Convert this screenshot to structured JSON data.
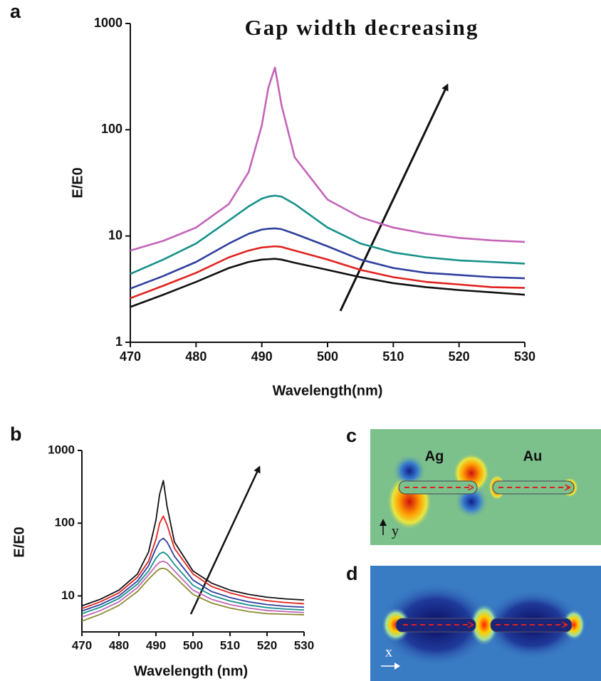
{
  "chart_data": [
    {
      "type": "line",
      "label": "a",
      "title": "Gap width decreasing",
      "xlabel": "Wavelength(nm)",
      "ylabel": "E/E0",
      "log_y": true,
      "x": [
        470,
        475,
        480,
        485,
        488,
        490,
        491,
        492,
        493,
        495,
        500,
        505,
        510,
        515,
        520,
        525,
        530
      ],
      "xlim": [
        470,
        530
      ],
      "xticks": [
        470,
        480,
        490,
        500,
        510,
        520,
        530
      ],
      "ylim": [
        1,
        1000
      ],
      "yticks": [
        1,
        10,
        100,
        1000
      ],
      "series": [
        {
          "color": "#c464b9",
          "values": [
            7.3,
            9,
            12,
            20,
            40,
            110,
            250,
            385,
            170,
            55,
            22,
            15,
            12,
            10.5,
            9.6,
            9.1,
            8.8
          ]
        },
        {
          "color": "#15918a",
          "values": [
            4.4,
            6,
            8.5,
            14,
            19,
            22.5,
            23.5,
            24,
            23.5,
            20,
            12,
            8.5,
            7,
            6.3,
            5.9,
            5.7,
            5.5
          ]
        },
        {
          "color": "#2f3f9e",
          "values": [
            3.2,
            4.2,
            5.7,
            8.5,
            10.5,
            11.5,
            11.7,
            11.8,
            11.6,
            10.5,
            8,
            6,
            5,
            4.5,
            4.3,
            4.1,
            4.0
          ]
        },
        {
          "color": "#e0231f",
          "values": [
            2.6,
            3.4,
            4.5,
            6.3,
            7.3,
            7.8,
            7.9,
            8,
            7.9,
            7.3,
            6,
            4.8,
            4.1,
            3.7,
            3.5,
            3.3,
            3.25
          ]
        },
        {
          "color": "#111111",
          "values": [
            2.15,
            2.8,
            3.7,
            5,
            5.7,
            6,
            6.05,
            6.1,
            6,
            5.6,
            4.8,
            4.1,
            3.6,
            3.3,
            3.1,
            2.95,
            2.8
          ]
        }
      ]
    },
    {
      "type": "line",
      "label": "b",
      "xlabel": "Wavelength (nm)",
      "ylabel": "E/E0",
      "log_y": true,
      "x": [
        470,
        475,
        480,
        485,
        488,
        490,
        491,
        492,
        493,
        495,
        500,
        505,
        510,
        515,
        520,
        525,
        530
      ],
      "xlim": [
        470,
        530
      ],
      "xticks": [
        470,
        480,
        490,
        500,
        510,
        520,
        530
      ],
      "ylim": [
        3.2,
        1000
      ],
      "yticks": [
        10,
        100,
        1000
      ],
      "series": [
        {
          "color": "#111111",
          "values": [
            7.3,
            9,
            12,
            20,
            40,
            110,
            250,
            385,
            170,
            55,
            22,
            15,
            12,
            10.5,
            9.6,
            9.1,
            8.8
          ]
        },
        {
          "color": "#e0231f",
          "values": [
            6.7,
            8.3,
            11,
            18,
            30,
            60,
            100,
            125,
            95,
            45,
            20,
            13.5,
            11,
            9.5,
            8.6,
            8.1,
            7.8
          ]
        },
        {
          "color": "#2f3f9e",
          "values": [
            6.2,
            7.6,
            10,
            16,
            26,
            45,
            57,
            62,
            55,
            35,
            16.5,
            11.5,
            9.5,
            8.3,
            7.6,
            7.2,
            7.0
          ]
        },
        {
          "color": "#15918a",
          "values": [
            5.7,
            7,
            9.2,
            14.5,
            22,
            33,
            38,
            40,
            37,
            27,
            14,
            10.2,
            8.5,
            7.5,
            6.9,
            6.6,
            6.4
          ]
        },
        {
          "color": "#c464b9",
          "values": [
            5.1,
            6.3,
            8.3,
            13,
            19.5,
            26,
            29,
            30,
            28.5,
            22,
            12,
            9,
            7.6,
            6.8,
            6.3,
            6.1,
            5.9
          ]
        },
        {
          "color": "#8c8a30",
          "values": [
            4.5,
            5.6,
            7.4,
            11.5,
            17,
            21.5,
            23.5,
            24,
            23,
            18.5,
            10.5,
            8,
            6.8,
            6.1,
            5.7,
            5.6,
            5.5
          ]
        }
      ]
    }
  ],
  "field_maps": [
    {
      "label": "c",
      "particles": [
        "Ag",
        "Au"
      ],
      "axis": "y"
    },
    {
      "label": "d",
      "axis": "x"
    }
  ]
}
